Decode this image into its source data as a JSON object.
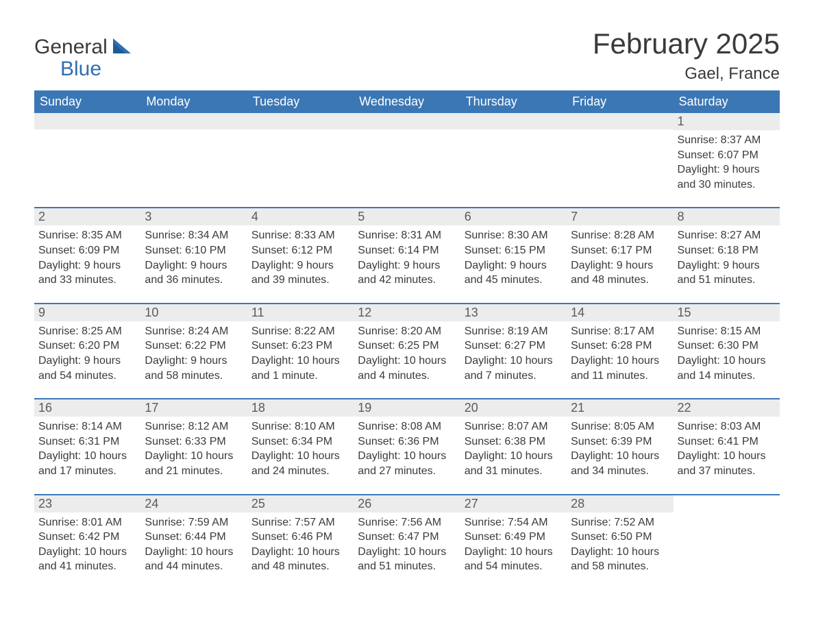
{
  "logo": {
    "word1": "General",
    "word2": "Blue"
  },
  "title": "February 2025",
  "location": "Gael, France",
  "colors": {
    "header_bg": "#3b77b5",
    "header_text": "#ffffff",
    "row_border": "#3b77b5",
    "daynum_bg": "#ececec",
    "text": "#3a3a3a",
    "logo_blue": "#2f6fb0"
  },
  "typography": {
    "title_fontsize": 42,
    "location_fontsize": 24,
    "header_fontsize": 18,
    "body_fontsize": 16
  },
  "day_headers": [
    "Sunday",
    "Monday",
    "Tuesday",
    "Wednesday",
    "Thursday",
    "Friday",
    "Saturday"
  ],
  "weeks": [
    [
      null,
      null,
      null,
      null,
      null,
      null,
      {
        "n": "1",
        "sunrise": "8:37 AM",
        "sunset": "6:07 PM",
        "daylight": "9 hours and 30 minutes."
      }
    ],
    [
      {
        "n": "2",
        "sunrise": "8:35 AM",
        "sunset": "6:09 PM",
        "daylight": "9 hours and 33 minutes."
      },
      {
        "n": "3",
        "sunrise": "8:34 AM",
        "sunset": "6:10 PM",
        "daylight": "9 hours and 36 minutes."
      },
      {
        "n": "4",
        "sunrise": "8:33 AM",
        "sunset": "6:12 PM",
        "daylight": "9 hours and 39 minutes."
      },
      {
        "n": "5",
        "sunrise": "8:31 AM",
        "sunset": "6:14 PM",
        "daylight": "9 hours and 42 minutes."
      },
      {
        "n": "6",
        "sunrise": "8:30 AM",
        "sunset": "6:15 PM",
        "daylight": "9 hours and 45 minutes."
      },
      {
        "n": "7",
        "sunrise": "8:28 AM",
        "sunset": "6:17 PM",
        "daylight": "9 hours and 48 minutes."
      },
      {
        "n": "8",
        "sunrise": "8:27 AM",
        "sunset": "6:18 PM",
        "daylight": "9 hours and 51 minutes."
      }
    ],
    [
      {
        "n": "9",
        "sunrise": "8:25 AM",
        "sunset": "6:20 PM",
        "daylight": "9 hours and 54 minutes."
      },
      {
        "n": "10",
        "sunrise": "8:24 AM",
        "sunset": "6:22 PM",
        "daylight": "9 hours and 58 minutes."
      },
      {
        "n": "11",
        "sunrise": "8:22 AM",
        "sunset": "6:23 PM",
        "daylight": "10 hours and 1 minute."
      },
      {
        "n": "12",
        "sunrise": "8:20 AM",
        "sunset": "6:25 PM",
        "daylight": "10 hours and 4 minutes."
      },
      {
        "n": "13",
        "sunrise": "8:19 AM",
        "sunset": "6:27 PM",
        "daylight": "10 hours and 7 minutes."
      },
      {
        "n": "14",
        "sunrise": "8:17 AM",
        "sunset": "6:28 PM",
        "daylight": "10 hours and 11 minutes."
      },
      {
        "n": "15",
        "sunrise": "8:15 AM",
        "sunset": "6:30 PM",
        "daylight": "10 hours and 14 minutes."
      }
    ],
    [
      {
        "n": "16",
        "sunrise": "8:14 AM",
        "sunset": "6:31 PM",
        "daylight": "10 hours and 17 minutes."
      },
      {
        "n": "17",
        "sunrise": "8:12 AM",
        "sunset": "6:33 PM",
        "daylight": "10 hours and 21 minutes."
      },
      {
        "n": "18",
        "sunrise": "8:10 AM",
        "sunset": "6:34 PM",
        "daylight": "10 hours and 24 minutes."
      },
      {
        "n": "19",
        "sunrise": "8:08 AM",
        "sunset": "6:36 PM",
        "daylight": "10 hours and 27 minutes."
      },
      {
        "n": "20",
        "sunrise": "8:07 AM",
        "sunset": "6:38 PM",
        "daylight": "10 hours and 31 minutes."
      },
      {
        "n": "21",
        "sunrise": "8:05 AM",
        "sunset": "6:39 PM",
        "daylight": "10 hours and 34 minutes."
      },
      {
        "n": "22",
        "sunrise": "8:03 AM",
        "sunset": "6:41 PM",
        "daylight": "10 hours and 37 minutes."
      }
    ],
    [
      {
        "n": "23",
        "sunrise": "8:01 AM",
        "sunset": "6:42 PM",
        "daylight": "10 hours and 41 minutes."
      },
      {
        "n": "24",
        "sunrise": "7:59 AM",
        "sunset": "6:44 PM",
        "daylight": "10 hours and 44 minutes."
      },
      {
        "n": "25",
        "sunrise": "7:57 AM",
        "sunset": "6:46 PM",
        "daylight": "10 hours and 48 minutes."
      },
      {
        "n": "26",
        "sunrise": "7:56 AM",
        "sunset": "6:47 PM",
        "daylight": "10 hours and 51 minutes."
      },
      {
        "n": "27",
        "sunrise": "7:54 AM",
        "sunset": "6:49 PM",
        "daylight": "10 hours and 54 minutes."
      },
      {
        "n": "28",
        "sunrise": "7:52 AM",
        "sunset": "6:50 PM",
        "daylight": "10 hours and 58 minutes."
      },
      null
    ]
  ],
  "labels": {
    "sunrise_prefix": "Sunrise: ",
    "sunset_prefix": "Sunset: ",
    "daylight_prefix": "Daylight: "
  }
}
